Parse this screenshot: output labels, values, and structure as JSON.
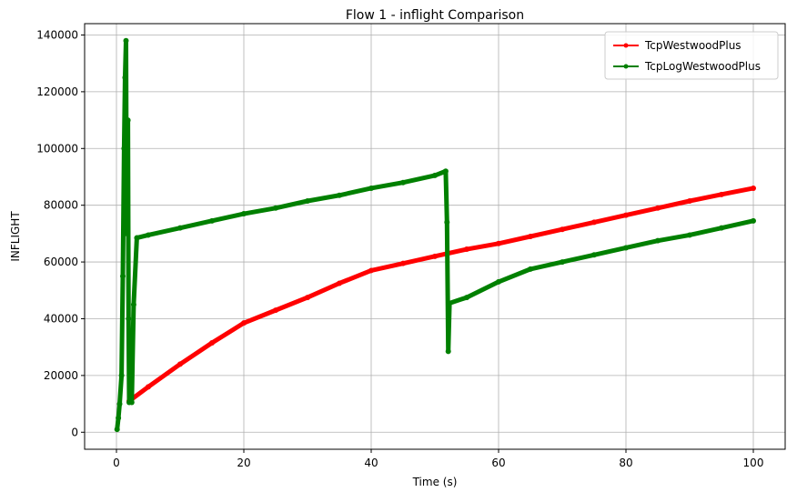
{
  "chart_data": {
    "type": "line",
    "title": "Flow 1 - inflight Comparison",
    "xlabel": "Time (s)",
    "ylabel": "INFLIGHT",
    "xlim": [
      -5,
      105
    ],
    "ylim": [
      -6000,
      144000
    ],
    "xticks": [
      0,
      20,
      40,
      60,
      80,
      100
    ],
    "yticks": [
      0,
      20000,
      40000,
      60000,
      80000,
      100000,
      120000,
      140000
    ],
    "grid": true,
    "legend_position": "top-right",
    "series": [
      {
        "name": "TcpWestwoodPlus",
        "color": "#ff0000",
        "points": [
          [
            2.0,
            11000
          ],
          [
            5,
            16000
          ],
          [
            10,
            24000
          ],
          [
            15,
            31500
          ],
          [
            20,
            38500
          ],
          [
            25,
            43000
          ],
          [
            30,
            47500
          ],
          [
            35,
            52500
          ],
          [
            40,
            57000
          ],
          [
            45,
            59500
          ],
          [
            50,
            62000
          ],
          [
            55,
            64500
          ],
          [
            60,
            66500
          ],
          [
            65,
            69000
          ],
          [
            70,
            71500
          ],
          [
            75,
            74000
          ],
          [
            80,
            76500
          ],
          [
            85,
            79000
          ],
          [
            90,
            81500
          ],
          [
            95,
            83800
          ],
          [
            100,
            86000
          ]
        ]
      },
      {
        "name": "TcpLogWestwoodPlus",
        "color": "#008000",
        "points": [
          [
            0.1,
            1000
          ],
          [
            0.3,
            5000
          ],
          [
            0.5,
            10000
          ],
          [
            0.8,
            20000
          ],
          [
            1.0,
            55000
          ],
          [
            1.2,
            100000
          ],
          [
            1.35,
            125000
          ],
          [
            1.5,
            138000
          ],
          [
            1.6,
            70000
          ],
          [
            1.8,
            110000
          ],
          [
            1.9,
            40000
          ],
          [
            2.0,
            10500
          ],
          [
            2.4,
            10500
          ],
          [
            2.7,
            45000
          ],
          [
            3.2,
            68500
          ],
          [
            5,
            69500
          ],
          [
            10,
            72000
          ],
          [
            15,
            74500
          ],
          [
            20,
            77000
          ],
          [
            25,
            79000
          ],
          [
            30,
            81500
          ],
          [
            35,
            83500
          ],
          [
            40,
            86000
          ],
          [
            45,
            88000
          ],
          [
            50,
            90500
          ],
          [
            51.7,
            92000
          ],
          [
            51.9,
            74000
          ],
          [
            52.1,
            28500
          ],
          [
            52.3,
            45500
          ],
          [
            55,
            47500
          ],
          [
            60,
            53000
          ],
          [
            65,
            57500
          ],
          [
            70,
            60000
          ],
          [
            75,
            62500
          ],
          [
            80,
            65000
          ],
          [
            85,
            67500
          ],
          [
            90,
            69500
          ],
          [
            95,
            72000
          ],
          [
            100,
            74500
          ]
        ]
      }
    ]
  }
}
